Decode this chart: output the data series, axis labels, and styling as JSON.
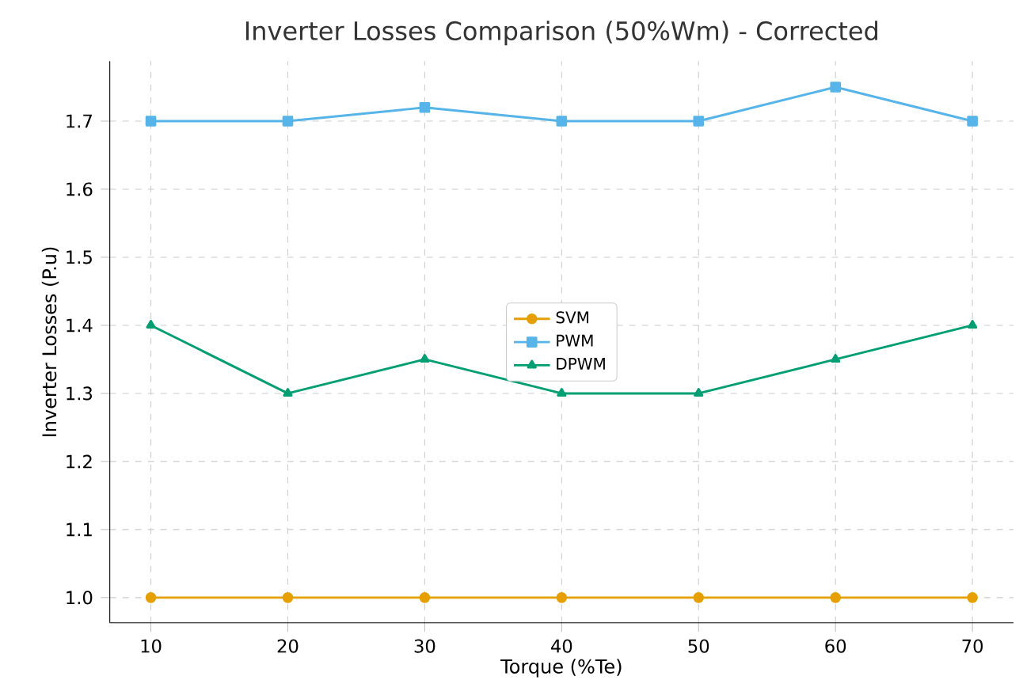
{
  "chart_data": {
    "type": "line",
    "title": "Inverter Losses Comparison (50%Wm) - Corrected",
    "xlabel": "Torque (%Te)",
    "ylabel": "Inverter Losses (P.u)",
    "x": [
      10,
      20,
      30,
      40,
      50,
      60,
      70
    ],
    "series": [
      {
        "name": "SVM",
        "color": "#e69f00",
        "marker": "circle",
        "values": [
          1.0,
          1.0,
          1.0,
          1.0,
          1.0,
          1.0,
          1.0
        ]
      },
      {
        "name": "PWM",
        "color": "#56b4e9",
        "marker": "square",
        "values": [
          1.7,
          1.7,
          1.72,
          1.7,
          1.7,
          1.75,
          1.7
        ]
      },
      {
        "name": "DPWM",
        "color": "#009e73",
        "marker": "triangle",
        "values": [
          1.4,
          1.3,
          1.35,
          1.3,
          1.3,
          1.35,
          1.4
        ]
      }
    ],
    "xlim": [
      7,
      73
    ],
    "ylim": [
      0.963,
      1.788
    ],
    "xticks": [
      10,
      20,
      30,
      40,
      50,
      60,
      70
    ],
    "yticks": [
      {
        "value": 1.0,
        "label": "1.0"
      },
      {
        "value": 1.1,
        "label": "1.1"
      },
      {
        "value": 1.2,
        "label": "1.2"
      },
      {
        "value": 1.3,
        "label": "1.3"
      },
      {
        "value": 1.4,
        "label": "1.4"
      },
      {
        "value": 1.5,
        "label": "1.5"
      },
      {
        "value": 1.6,
        "label": "1.6"
      },
      {
        "value": 1.7,
        "label": "1.7"
      }
    ],
    "grid": true,
    "legend": "center",
    "line_style": "solid"
  }
}
